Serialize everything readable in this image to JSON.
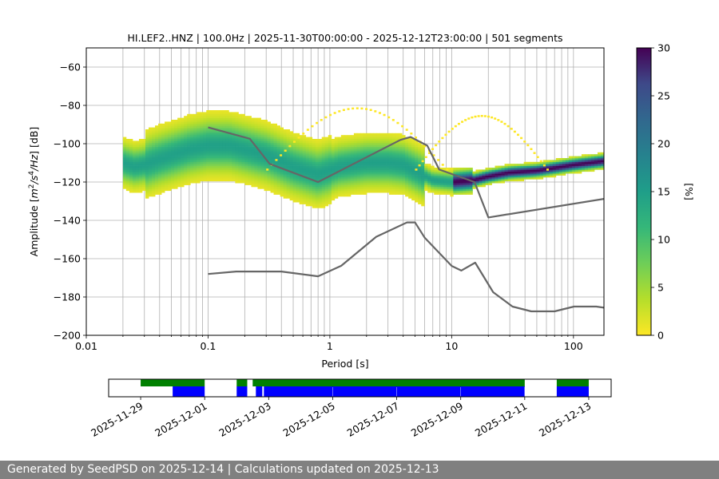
{
  "chart_data": [
    {
      "type": "heatmap",
      "title": "HI.LEF2..HNZ | 100.0Hz | 2025-11-30T00:00:00 - 2025-12-12T23:00:00 | 501 segments",
      "xlabel": "Period [s]",
      "ylabel_parts": [
        "Amplitude [",
        "m",
        "2",
        "/",
        "s",
        "4",
        "/",
        "Hz",
        "] [dB]"
      ],
      "x_scale": "log",
      "xlim": [
        0.01,
        178
      ],
      "ylim": [
        -200,
        -50
      ],
      "x_ticks": [
        {
          "value": 0.01,
          "label": "0.01"
        },
        {
          "value": 0.1,
          "label": "0.1"
        },
        {
          "value": 1,
          "label": "1"
        },
        {
          "value": 10,
          "label": "10"
        },
        {
          "value": 100,
          "label": "100"
        }
      ],
      "y_ticks": [
        -60,
        -80,
        -100,
        -120,
        -140,
        -160,
        -180,
        -200
      ],
      "y_tick_labels": [
        "−60",
        "−80",
        "−100",
        "−120",
        "−140",
        "−160",
        "−180",
        "−200"
      ],
      "grid": true,
      "colorbar": {
        "label": "[%]",
        "range": [
          0,
          30
        ],
        "ticks": [
          0,
          5,
          10,
          15,
          20,
          25,
          30
        ],
        "colormap": "viridis_r"
      },
      "noise_models": {
        "high": {
          "period": [
            0.1,
            0.22,
            0.32,
            0.8,
            3.8,
            4.6,
            6.3,
            7.9,
            15.4,
            20,
            178
          ],
          "db": [
            -91.5,
            -97.4,
            -110.5,
            -120,
            -98,
            -96.5,
            -101,
            -113.5,
            -120,
            -138.5,
            -128.8
          ]
        },
        "low": {
          "period": [
            0.1,
            0.17,
            0.4,
            0.8,
            1.24,
            2.4,
            4.3,
            5,
            6,
            10,
            12,
            15.6,
            21.9,
            31.6,
            45,
            70,
            101,
            154,
            178
          ],
          "db": [
            -168,
            -166.7,
            -166.7,
            -169.2,
            -163.7,
            -148.6,
            -141.1,
            -141.1,
            -149,
            -163.8,
            -166.2,
            -162.1,
            -177.5,
            -185,
            -187.5,
            -187.5,
            -185,
            -185,
            -185.6
          ]
        }
      },
      "psd_mode": {
        "period": [
          0.02,
          0.025,
          0.03,
          0.04,
          0.05,
          0.07,
          0.1,
          0.15,
          0.2,
          0.3,
          0.5,
          0.8,
          1.2,
          2,
          3,
          4,
          5,
          7,
          10,
          15,
          20,
          30,
          50,
          100,
          178
        ],
        "db": [
          -110,
          -112,
          -111,
          -108,
          -106,
          -103,
          -101,
          -101,
          -103,
          -106,
          -112,
          -116,
          -112,
          -110,
          -110,
          -111,
          -114,
          -119,
          -120,
          -119,
          -117,
          -115,
          -114,
          -111,
          -109
        ]
      }
    },
    {
      "type": "timeline",
      "x_ticks": [
        "2025-11-29",
        "2025-12-01",
        "2025-12-03",
        "2025-12-05",
        "2025-12-07",
        "2025-12-09",
        "2025-12-11",
        "2025-12-13"
      ],
      "xlim": [
        "2025-11-28",
        "2025-12-13.7"
      ],
      "data_available": [
        [
          "2025-11-29",
          "2025-12-01"
        ],
        [
          "2025-12-02",
          "2025-12-02.33"
        ],
        [
          "2025-12-02.5",
          "2025-12-11"
        ],
        [
          "2025-12-12",
          "2025-12-13"
        ]
      ],
      "psd_segments": [
        [
          "2025-11-30",
          "2025-12-01"
        ],
        [
          "2025-12-02",
          "2025-12-02.33"
        ],
        [
          "2025-12-02.6",
          "2025-12-02.8"
        ],
        [
          "2025-12-02.85",
          "2025-12-11"
        ],
        [
          "2025-12-12",
          "2025-12-13"
        ]
      ],
      "series_colors": {
        "data_available": "#008000",
        "psd_segments": "#0000ff"
      }
    }
  ],
  "footer": "Generated by SeedPSD on 2025-12-14 | Calculations updated on 2025-12-13"
}
